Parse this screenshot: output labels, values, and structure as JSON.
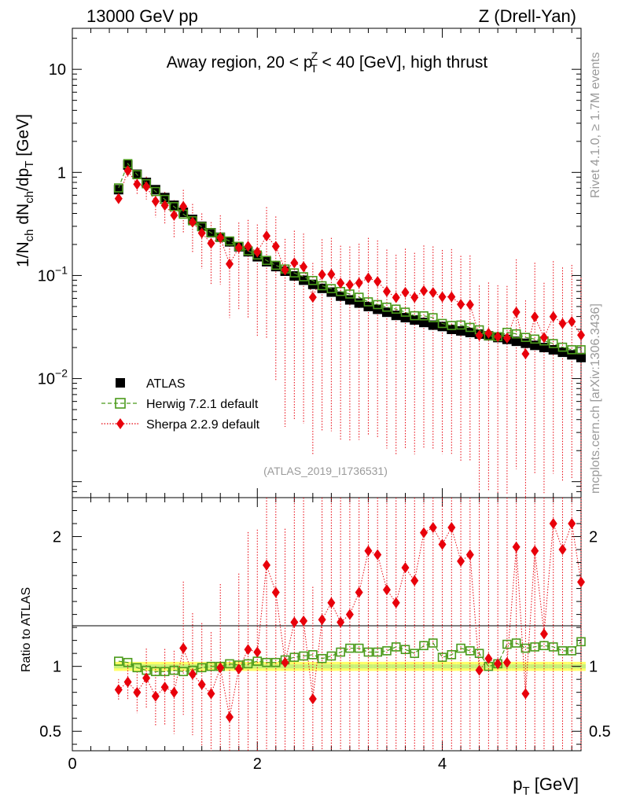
{
  "header": {
    "left": "13000 GeV pp",
    "right": "Z (Drell-Yan)",
    "rivet": "Rivet 4.1.0, ≥ 1.7M events",
    "mcplots": "mcplots.cern.ch [arXiv:1306.3436]",
    "analysis": "(ATLAS_2019_I1736531)"
  },
  "chart_data": {
    "type": "scatter",
    "title": "Away region, 20 < p_T^Z < 40 [GeV], high thrust",
    "xlabel": "p_T [GeV]",
    "ylabel_top": "1/N_ch dN_ch/dp_T [GeV]",
    "ylabel_ratio": "Ratio to ATLAS",
    "xlim": [
      0,
      5.5
    ],
    "ylim_top": [
      0.0007,
      25
    ],
    "ylim_ratio": [
      0.35,
      2.3
    ],
    "x_ticks": [
      0,
      2,
      4
    ],
    "y_ticks_top": [
      "10^-2",
      "10^-1",
      "1",
      "10"
    ],
    "y_ticks_ratio": [
      "0.5",
      "1",
      "2"
    ],
    "legend": [
      "ATLAS",
      "Herwig 7.2.1 default",
      "Sherpa 2.2.9 default"
    ],
    "x": [
      0.5,
      0.6,
      0.7,
      0.8,
      0.9,
      1.0,
      1.1,
      1.2,
      1.3,
      1.4,
      1.5,
      1.6,
      1.7,
      1.8,
      1.9,
      2.0,
      2.1,
      2.2,
      2.3,
      2.4,
      2.5,
      2.6,
      2.7,
      2.8,
      2.9,
      3.0,
      3.1,
      3.2,
      3.3,
      3.4,
      3.5,
      3.6,
      3.7,
      3.8,
      3.9,
      4.0,
      4.1,
      4.2,
      4.3,
      4.4,
      4.5,
      4.6,
      4.7,
      4.8,
      4.9,
      5.0,
      5.1,
      5.2,
      5.3,
      5.4,
      5.5
    ],
    "series": [
      {
        "name": "ATLAS",
        "color": "#000000",
        "values": [
          0.68,
          1.18,
          0.96,
          0.8,
          0.68,
          0.57,
          0.48,
          0.41,
          0.35,
          0.3,
          0.26,
          0.235,
          0.212,
          0.19,
          0.17,
          0.152,
          0.136,
          0.122,
          0.11,
          0.099,
          0.09,
          0.082,
          0.075,
          0.069,
          0.063,
          0.058,
          0.054,
          0.05,
          0.047,
          0.044,
          0.041,
          0.039,
          0.037,
          0.035,
          0.033,
          0.032,
          0.03,
          0.029,
          0.028,
          0.027,
          0.026,
          0.025,
          0.024,
          0.023,
          0.022,
          0.021,
          0.02,
          0.019,
          0.018,
          0.017,
          0.016
        ]
      },
      {
        "name": "Herwig 7.2.1 default",
        "color": "#4a9a1a",
        "ratio": [
          1.04,
          1.03,
          0.99,
          0.97,
          0.96,
          0.96,
          0.97,
          0.96,
          0.97,
          0.99,
          1.0,
          1.0,
          1.02,
          1.01,
          1.02,
          1.04,
          1.03,
          1.03,
          1.05,
          1.07,
          1.08,
          1.09,
          1.06,
          1.08,
          1.11,
          1.14,
          1.14,
          1.11,
          1.11,
          1.12,
          1.15,
          1.13,
          1.1,
          1.16,
          1.18,
          1.07,
          1.09,
          1.14,
          1.12,
          1.1,
          1.0,
          1.02,
          1.17,
          1.18,
          1.14,
          1.15,
          1.16,
          1.15,
          1.12,
          1.12,
          1.19
        ]
      },
      {
        "name": "Sherpa 2.2.9 default",
        "color": "#e8000b",
        "ratio": [
          0.82,
          0.88,
          0.8,
          0.91,
          0.77,
          0.84,
          0.8,
          1.14,
          0.94,
          0.86,
          0.79,
          0.99,
          0.61,
          0.98,
          1.13,
          1.11,
          1.78,
          1.57,
          1.03,
          1.34,
          1.35,
          0.75,
          1.36,
          1.49,
          1.34,
          1.4,
          1.57,
          1.89,
          1.86,
          1.59,
          1.49,
          1.76,
          1.66,
          2.03,
          2.07,
          1.94,
          2.07,
          1.81,
          1.86,
          0.97,
          1.06,
          1.02,
          1.03,
          1.92,
          0.79,
          1.89,
          1.25,
          2.1,
          1.9,
          2.1,
          1.65
        ]
      },
      {
        "name": "ATLAS uncertainty band",
        "color": "#ffff66",
        "band": [
          0.035,
          0.035,
          0.035,
          0.035,
          0.035,
          0.035,
          0.035,
          0.035,
          0.035,
          0.035,
          0.035,
          0.035,
          0.035,
          0.035,
          0.035,
          0.035,
          0.035,
          0.035,
          0.035,
          0.035,
          0.035,
          0.035,
          0.035,
          0.035,
          0.035,
          0.035,
          0.035,
          0.035,
          0.035,
          0.035,
          0.035,
          0.035,
          0.035,
          0.035,
          0.035,
          0.035,
          0.035,
          0.035,
          0.035,
          0.035,
          0.035,
          0.035,
          0.035,
          0.035,
          0.035,
          0.035,
          0.035,
          0.035,
          0.035,
          0.035,
          0.035
        ]
      }
    ]
  }
}
